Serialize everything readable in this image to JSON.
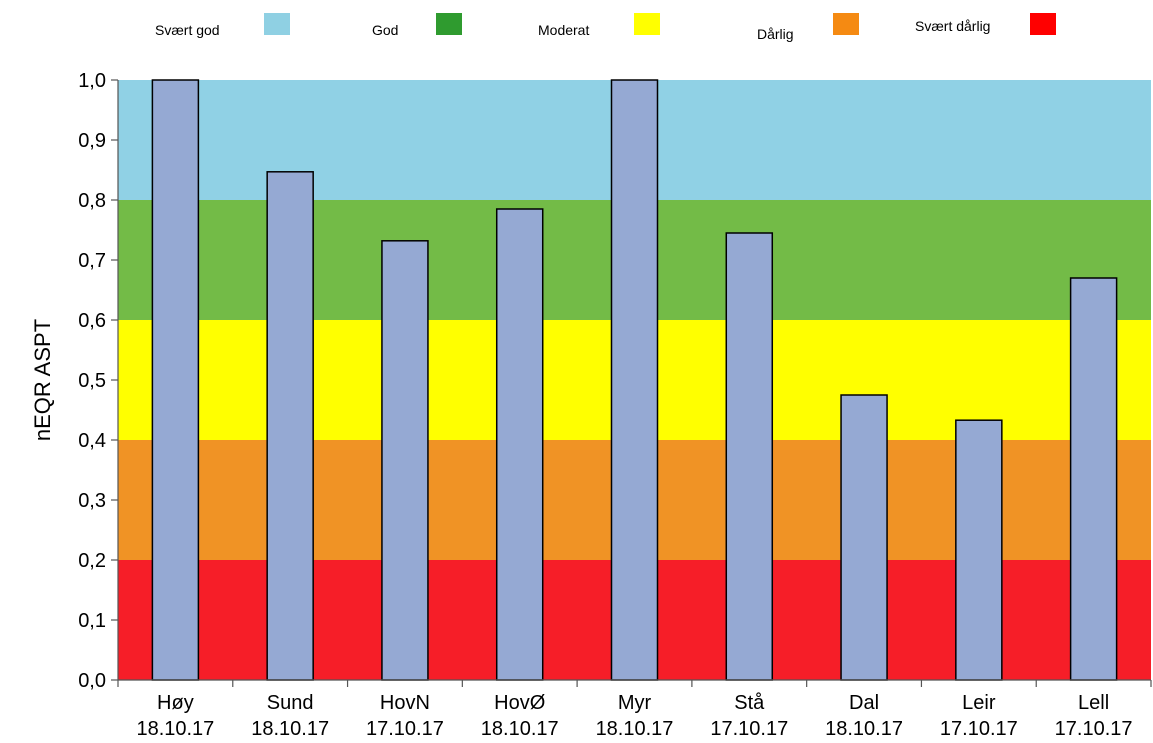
{
  "legend": {
    "items": [
      {
        "label": "Svært god",
        "color": "#8fd0e3"
      },
      {
        "label": "God",
        "color": "#2f9b2f"
      },
      {
        "label": "Moderat",
        "color": "#ffff00"
      },
      {
        "label": "Dårlig",
        "color": "#f58a12"
      },
      {
        "label": "Svært dårlig",
        "color": "#ff0000"
      }
    ]
  },
  "chart_data": {
    "type": "bar",
    "title": "",
    "xlabel": "",
    "ylabel": "nEQR ASPT",
    "ylim": [
      0,
      1.0
    ],
    "yticks": [
      "0,0",
      "0,1",
      "0,2",
      "0,3",
      "0,4",
      "0,5",
      "0,6",
      "0,7",
      "0,8",
      "0,9",
      "1,0"
    ],
    "categories": [
      {
        "name": "Høy",
        "date": "18.10.17"
      },
      {
        "name": "Sund",
        "date": "18.10.17"
      },
      {
        "name": "HovN",
        "date": "17.10.17"
      },
      {
        "name": "HovØ",
        "date": "18.10.17"
      },
      {
        "name": "Myr",
        "date": "18.10.17"
      },
      {
        "name": "Stå",
        "date": "17.10.17"
      },
      {
        "name": "Dal",
        "date": "18.10.17"
      },
      {
        "name": "Leir",
        "date": "17.10.17"
      },
      {
        "name": "Lell",
        "date": "17.10.17"
      }
    ],
    "values": [
      1.0,
      0.847,
      0.732,
      0.785,
      1.0,
      0.745,
      0.475,
      0.433,
      0.67
    ],
    "bar_color": "#95a9d3",
    "bands": [
      {
        "from": 0.0,
        "to": 0.2,
        "color": "#f61e28"
      },
      {
        "from": 0.2,
        "to": 0.4,
        "color": "#f09325"
      },
      {
        "from": 0.4,
        "to": 0.6,
        "color": "#ffff00"
      },
      {
        "from": 0.6,
        "to": 0.8,
        "color": "#73bb47"
      },
      {
        "from": 0.8,
        "to": 1.0,
        "color": "#90d1e5"
      }
    ]
  }
}
